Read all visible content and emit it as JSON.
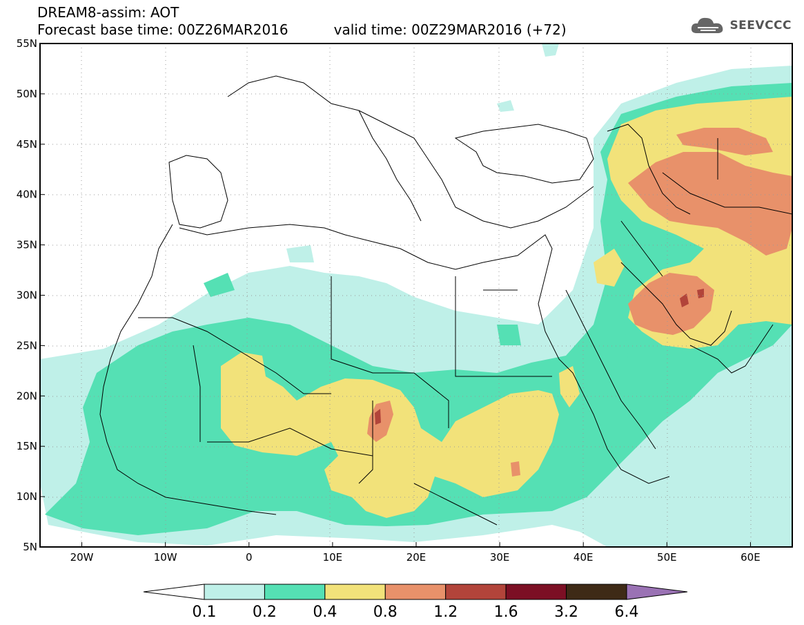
{
  "title": {
    "line1": "DREAM8-assim: AOT",
    "base_time": "Forecast base time: 00Z26MAR2016",
    "valid_time": "valid time: 00Z29MAR2016 (+72)"
  },
  "logo": {
    "icon": "cloud-icon",
    "text": "SEEVCCC"
  },
  "map": {
    "lat_range": [
      5,
      55
    ],
    "lon_range": [
      -25,
      65
    ],
    "lat_ticks": [
      {
        "value": 55,
        "label": "55N"
      },
      {
        "value": 50,
        "label": "50N"
      },
      {
        "value": 45,
        "label": "45N"
      },
      {
        "value": 40,
        "label": "40N"
      },
      {
        "value": 35,
        "label": "35N"
      },
      {
        "value": 30,
        "label": "30N"
      },
      {
        "value": 25,
        "label": "25N"
      },
      {
        "value": 20,
        "label": "20N"
      },
      {
        "value": 15,
        "label": "15N"
      },
      {
        "value": 10,
        "label": "10N"
      },
      {
        "value": 5,
        "label": "5N"
      }
    ],
    "lon_ticks": [
      {
        "value": -20,
        "label": "20W"
      },
      {
        "value": -10,
        "label": "10W"
      },
      {
        "value": 0,
        "label": "0"
      },
      {
        "value": 10,
        "label": "10E"
      },
      {
        "value": 20,
        "label": "20E"
      },
      {
        "value": 30,
        "label": "30E"
      },
      {
        "value": 40,
        "label": "40E"
      },
      {
        "value": 50,
        "label": "50E"
      },
      {
        "value": 60,
        "label": "60E"
      }
    ],
    "grid": true
  },
  "colorbar": {
    "colors": [
      "#ffffff",
      "#bff0e8",
      "#55e0b4",
      "#f2e27a",
      "#e8916a",
      "#b2443a",
      "#7c0f24",
      "#3e2a16",
      "#9a72b4"
    ],
    "labels": [
      "0.1",
      "0.2",
      "0.4",
      "0.8",
      "1.2",
      "1.6",
      "3.2",
      "6.4"
    ]
  }
}
